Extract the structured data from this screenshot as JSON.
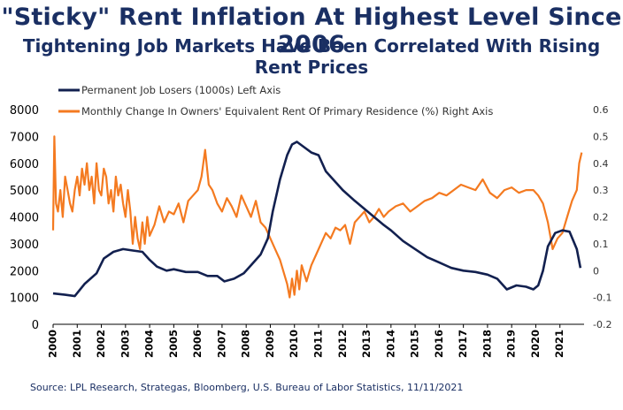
{
  "title": "\"Sticky\" Rent Inflation At Highest Level Since 2006",
  "subtitle": "Tightening Job Markets Have Been Correlated With Rising Rent Prices",
  "source": "Source: LPL Research, Strategas, Bloomberg, U.S. Bureau of Labor Statistics,  11/11/2021",
  "colors": {
    "job_losers": "#12204f",
    "rent": "#f47a20",
    "title": "#1a2f63"
  },
  "chart_data": {
    "type": "line",
    "grid": false,
    "legend_position": "top-left",
    "x_ticks": [
      "2000",
      "2001",
      "2002",
      "2003",
      "2004",
      "2005",
      "2006",
      "2007",
      "2008",
      "2009",
      "2010",
      "2011",
      "2012",
      "2013",
      "2014",
      "2015",
      "2016",
      "2017",
      "2018",
      "2019",
      "2020",
      "2021"
    ],
    "left_axis": {
      "ylim": [
        0,
        8000
      ],
      "ticks": [
        "0",
        "1000",
        "2000",
        "3000",
        "4000",
        "5000",
        "6000",
        "7000",
        "8000"
      ]
    },
    "right_axis": {
      "ylim": [
        -0.2,
        0.6
      ],
      "ticks": [
        "-0.2",
        "-0.1",
        "0",
        "0.1",
        "0.2",
        "0.3",
        "0.4",
        "0.5",
        "0.6"
      ]
    },
    "series": [
      {
        "name": "Permanent Job Losers (1000s) Left Axis",
        "axis": "left",
        "x": [
          2000.0,
          2000.5,
          2000.9,
          2001.3,
          2001.8,
          2002.1,
          2002.5,
          2002.9,
          2003.3,
          2003.7,
          2004.0,
          2004.3,
          2004.7,
          2005.0,
          2005.5,
          2006.0,
          2006.4,
          2006.8,
          2007.1,
          2007.5,
          2007.9,
          2008.2,
          2008.6,
          2008.9,
          2009.1,
          2009.4,
          2009.7,
          2009.9,
          2010.1,
          2010.4,
          2010.7,
          2011.0,
          2011.3,
          2011.7,
          2012.0,
          2012.5,
          2012.9,
          2013.3,
          2013.7,
          2014.0,
          2014.5,
          2015.0,
          2015.5,
          2016.0,
          2016.5,
          2017.0,
          2017.5,
          2018.0,
          2018.4,
          2018.8,
          2019.2,
          2019.6,
          2019.9,
          2020.1,
          2020.3,
          2020.5,
          2020.8,
          2021.1,
          2021.4,
          2021.7,
          2021.85
        ],
        "values": [
          1150,
          1100,
          1050,
          1500,
          1900,
          2450,
          2700,
          2800,
          2750,
          2700,
          2400,
          2150,
          2000,
          2050,
          1950,
          1950,
          1800,
          1800,
          1600,
          1700,
          1900,
          2200,
          2600,
          3200,
          4200,
          5400,
          6300,
          6700,
          6800,
          6600,
          6400,
          6300,
          5700,
          5300,
          5000,
          4600,
          4300,
          4000,
          3700,
          3500,
          3100,
          2800,
          2500,
          2300,
          2100,
          2000,
          1950,
          1850,
          1700,
          1300,
          1450,
          1400,
          1300,
          1450,
          2000,
          2900,
          3400,
          3500,
          3450,
          2800,
          2100
        ]
      },
      {
        "name": "Monthly Change In Owners' Equivalent Rent Of Primary Residence (%) Right Axis",
        "axis": "right",
        "x": [
          2000.0,
          2000.05,
          2000.12,
          2000.2,
          2000.3,
          2000.4,
          2000.5,
          2000.6,
          2000.7,
          2000.8,
          2000.9,
          2001.0,
          2001.1,
          2001.2,
          2001.3,
          2001.4,
          2001.5,
          2001.6,
          2001.7,
          2001.8,
          2001.9,
          2002.0,
          2002.1,
          2002.2,
          2002.3,
          2002.4,
          2002.5,
          2002.6,
          2002.7,
          2002.8,
          2002.9,
          2003.0,
          2003.1,
          2003.2,
          2003.3,
          2003.4,
          2003.5,
          2003.6,
          2003.7,
          2003.8,
          2003.9,
          2004.0,
          2004.2,
          2004.4,
          2004.6,
          2004.8,
          2005.0,
          2005.2,
          2005.4,
          2005.6,
          2005.8,
          2006.0,
          2006.15,
          2006.3,
          2006.45,
          2006.6,
          2006.8,
          2007.0,
          2007.2,
          2007.4,
          2007.6,
          2007.8,
          2008.0,
          2008.2,
          2008.4,
          2008.6,
          2008.8,
          2009.0,
          2009.2,
          2009.4,
          2009.6,
          2009.7,
          2009.8,
          2009.9,
          2010.0,
          2010.1,
          2010.2,
          2010.3,
          2010.5,
          2010.7,
          2010.9,
          2011.1,
          2011.3,
          2011.5,
          2011.7,
          2011.9,
          2012.1,
          2012.3,
          2012.5,
          2012.7,
          2012.9,
          2013.1,
          2013.3,
          2013.5,
          2013.7,
          2013.9,
          2014.2,
          2014.5,
          2014.8,
          2015.1,
          2015.4,
          2015.7,
          2016.0,
          2016.3,
          2016.6,
          2016.9,
          2017.2,
          2017.5,
          2017.8,
          2018.1,
          2018.4,
          2018.7,
          2019.0,
          2019.3,
          2019.6,
          2019.9,
          2020.1,
          2020.3,
          2020.5,
          2020.7,
          2020.9,
          2021.1,
          2021.3,
          2021.5,
          2021.7,
          2021.8,
          2021.9
        ],
        "values": [
          0.15,
          0.5,
          0.25,
          0.22,
          0.3,
          0.2,
          0.35,
          0.3,
          0.25,
          0.22,
          0.3,
          0.35,
          0.28,
          0.38,
          0.32,
          0.4,
          0.3,
          0.35,
          0.25,
          0.4,
          0.3,
          0.28,
          0.38,
          0.35,
          0.25,
          0.3,
          0.22,
          0.35,
          0.28,
          0.32,
          0.25,
          0.2,
          0.3,
          0.22,
          0.1,
          0.2,
          0.12,
          0.08,
          0.18,
          0.1,
          0.2,
          0.13,
          0.17,
          0.24,
          0.18,
          0.22,
          0.21,
          0.25,
          0.18,
          0.26,
          0.28,
          0.3,
          0.35,
          0.45,
          0.32,
          0.3,
          0.25,
          0.22,
          0.27,
          0.24,
          0.2,
          0.28,
          0.24,
          0.2,
          0.26,
          0.18,
          0.16,
          0.12,
          0.08,
          0.04,
          -0.02,
          -0.05,
          -0.1,
          -0.03,
          -0.09,
          0.0,
          -0.07,
          0.02,
          -0.04,
          0.02,
          0.06,
          0.1,
          0.14,
          0.12,
          0.16,
          0.15,
          0.17,
          0.1,
          0.18,
          0.2,
          0.22,
          0.18,
          0.2,
          0.23,
          0.2,
          0.22,
          0.24,
          0.25,
          0.22,
          0.24,
          0.26,
          0.27,
          0.29,
          0.28,
          0.3,
          0.32,
          0.31,
          0.3,
          0.34,
          0.29,
          0.27,
          0.3,
          0.31,
          0.29,
          0.3,
          0.3,
          0.28,
          0.25,
          0.18,
          0.08,
          0.12,
          0.14,
          0.2,
          0.26,
          0.3,
          0.4,
          0.44
        ]
      }
    ]
  }
}
